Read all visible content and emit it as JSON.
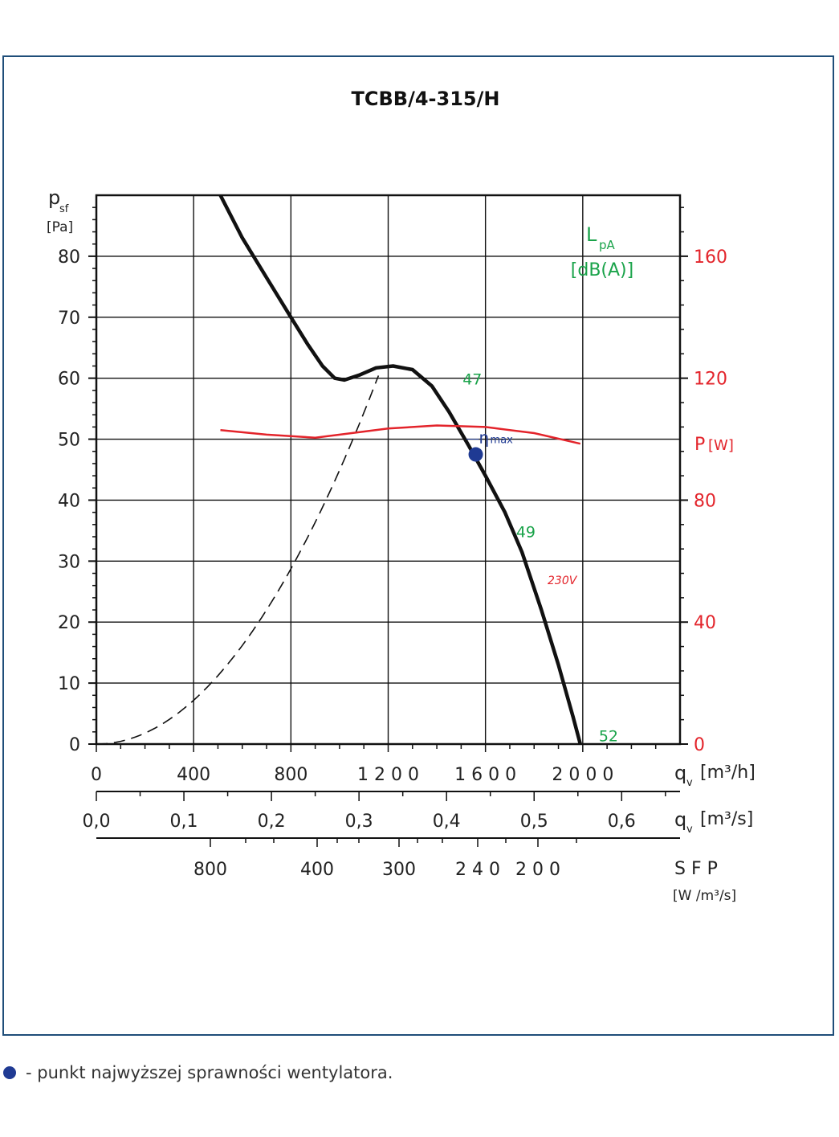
{
  "chart_data": {
    "type": "line",
    "title": "TCBB/4-315/H",
    "y_axis": {
      "label_main": "p",
      "label_sub": "sf",
      "unit": "[Pa]",
      "min": 0,
      "max": 90,
      "ticks": [
        0,
        10,
        20,
        30,
        40,
        50,
        60,
        70,
        80
      ]
    },
    "y2_axis": {
      "label_main": "P",
      "unit": "[W]",
      "min": 0,
      "max": 180,
      "ticks": [
        0,
        40,
        80,
        120,
        160
      ],
      "color": "#e3242b"
    },
    "x_axis": {
      "label_main": "q",
      "label_sub": "v",
      "unit": "[m³/h]",
      "min": 0,
      "max": 2400,
      "ticks": [
        0,
        400,
        800,
        1200,
        1600,
        2000
      ],
      "tick_labels": [
        "0",
        "400",
        "800",
        "1 2 0 0",
        "1 6 0 0",
        "2 0 0 0"
      ]
    },
    "x_axis_2": {
      "label_main": "q",
      "label_sub": "v",
      "unit": "[m³/s]",
      "ticks": [
        0.0,
        0.1,
        0.2,
        0.3,
        0.4,
        0.5,
        0.6
      ],
      "tick_labels": [
        "0,0",
        "0,1",
        "0,2",
        "0,3",
        "0,4",
        "0,5",
        "0,6"
      ]
    },
    "sfp_axis": {
      "label": "S F P",
      "unit": "[W /m³/s]",
      "ticks": [
        800,
        400,
        300,
        240,
        200
      ],
      "tick_labels": [
        "800",
        "400",
        "300",
        "2 4 0",
        "2 0 0"
      ]
    },
    "sound_label": {
      "main": "L",
      "sub": "pA",
      "unit": "[dB(A)]",
      "color": "#1aa34a"
    },
    "series": [
      {
        "name": "",
        "color": "#111111",
        "x": [
          510,
          600,
          700,
          800,
          870,
          930,
          980,
          1020,
          1080,
          1150,
          1220,
          1300,
          1380,
          1450,
          1530,
          1600,
          1680,
          1750,
          1830,
          1900,
          1960,
          1990
        ],
        "y": [
          90,
          83,
          76.5,
          70,
          65.5,
          62,
          60,
          59.7,
          60.5,
          61.7,
          62,
          61.4,
          58.7,
          54.5,
          49,
          44,
          38,
          31.5,
          22,
          13,
          4.5,
          0
        ]
      },
      {
        "name": "230V",
        "axis": "y2",
        "color": "#e3242b",
        "x": [
          510,
          700,
          900,
          1050,
          1200,
          1400,
          1600,
          1800,
          1990
        ],
        "y": [
          103,
          101.5,
          100.5,
          102,
          103.5,
          104.5,
          104,
          102,
          98.5
        ]
      }
    ],
    "system_curve": {
      "x": [
        0,
        200,
        400,
        600,
        800,
        1000,
        1200
      ],
      "y": [
        0,
        1.7,
        6.9,
        15.5,
        27.5,
        43,
        62
      ]
    },
    "eta_point": {
      "label": "η",
      "label_sup": "max",
      "x": 1560,
      "y": 47.5,
      "color": "#1f3a93"
    },
    "sound_values": [
      {
        "text": "47",
        "x": 1440,
        "y": 60
      },
      {
        "text": "49",
        "x": 1660,
        "y": 35
      },
      {
        "text": "52",
        "x": 2000,
        "y": 1.5
      }
    ]
  },
  "footnote": "- punkt najwyższej sprawności wentylatora."
}
